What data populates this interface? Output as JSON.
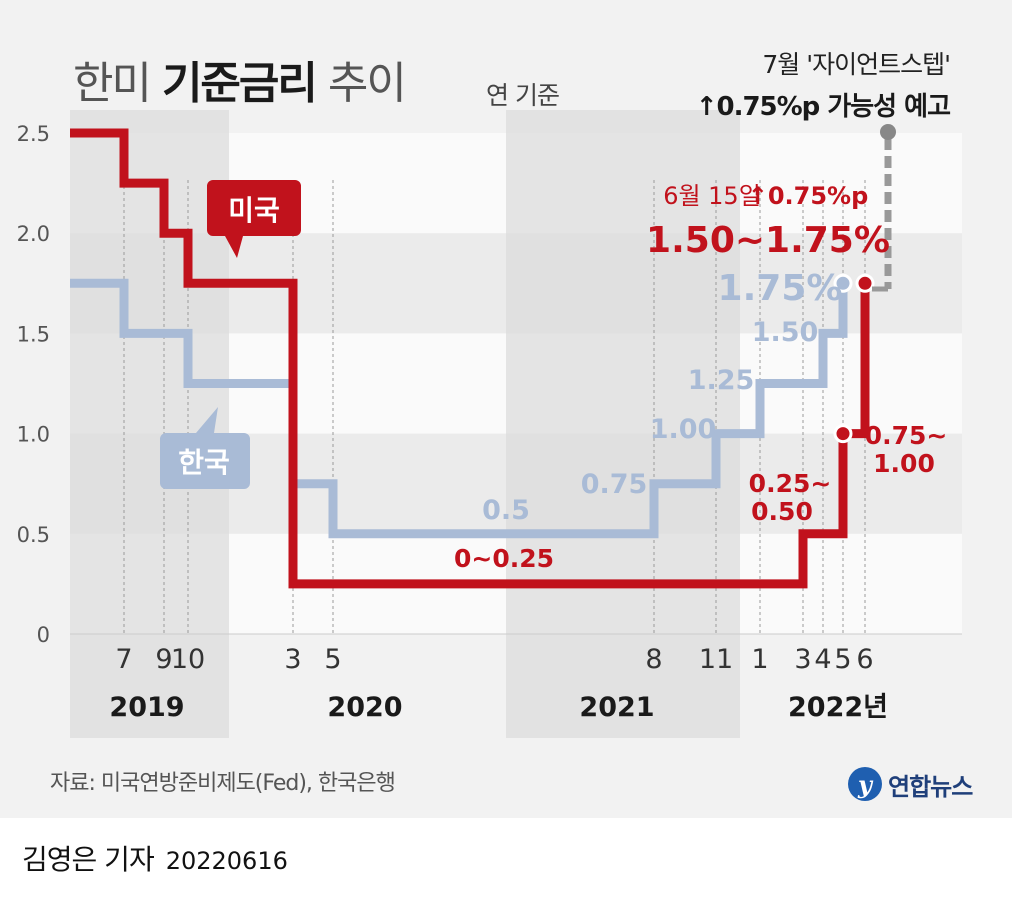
{
  "header": {
    "title_pre": "한미 ",
    "title_bold": "기준금리",
    "title_post": " 추이",
    "unit": "연 기준"
  },
  "annotation_july": {
    "line1": "7월 '자이언트스텝'",
    "line2": "↑0.75%p 가능성 예고"
  },
  "source": "자료: 미국연방준비제도(Fed), 한국은행",
  "credit": {
    "name": "김영은 기자",
    "date": "20220616"
  },
  "logo": {
    "mark": "y",
    "text": "연합뉴스"
  },
  "colors": {
    "us": "#c1121c",
    "korea": "#a9bbd6",
    "gray_band": "#dcdcdc",
    "grid_band": "#ebebeb",
    "plot_bg": "#fafafa",
    "dashed": "#999999"
  },
  "chart_data": {
    "type": "line",
    "step": true,
    "title": "한미 기준금리 추이",
    "ylabel": "연 기준",
    "ylim": [
      0,
      2.5
    ],
    "yticks": [
      "0",
      "0.5",
      "1.0",
      "1.5",
      "2.0",
      "2.5"
    ],
    "month_ticks": [
      "7",
      "9",
      "10",
      "3",
      "5",
      "8",
      "11",
      "1",
      "3",
      "4",
      "5",
      "6"
    ],
    "year_labels": [
      "2019",
      "2020",
      "2021",
      "2022년"
    ],
    "series": [
      {
        "name": "미국",
        "points": [
          [
            "2019-01",
            2.5
          ],
          [
            "2019-07",
            2.25
          ],
          [
            "2019-09",
            2.0
          ],
          [
            "2019-10",
            1.75
          ],
          [
            "2020-03",
            0.25
          ],
          [
            "2022-03",
            0.5
          ],
          [
            "2022-05",
            1.0
          ],
          [
            "2022-06",
            1.75
          ]
        ]
      },
      {
        "name": "한국",
        "points": [
          [
            "2019-01",
            1.75
          ],
          [
            "2019-07",
            1.5
          ],
          [
            "2019-10",
            1.25
          ],
          [
            "2020-03",
            0.75
          ],
          [
            "2020-05",
            0.5
          ],
          [
            "2021-08",
            0.75
          ],
          [
            "2021-11",
            1.0
          ],
          [
            "2022-01",
            1.25
          ],
          [
            "2022-04",
            1.5
          ],
          [
            "2022-05",
            1.75
          ]
        ]
      }
    ],
    "labels_us": {
      "flag": "미국",
      "low": "0~0.25",
      "mid_1": "0.25~",
      "mid_2": "0.50",
      "mid2_1": "0.75~",
      "mid2_2": "1.00",
      "latest_date": "6월 15일",
      "latest_change": "↑0.75%p",
      "latest_range": "1.50~1.75%"
    },
    "labels_korea": {
      "flag": "한국",
      "v050": "0.5",
      "v075": "0.75",
      "v100": "1.00",
      "v125": "1.25",
      "v150": "1.50",
      "v175": "1.75%"
    }
  }
}
